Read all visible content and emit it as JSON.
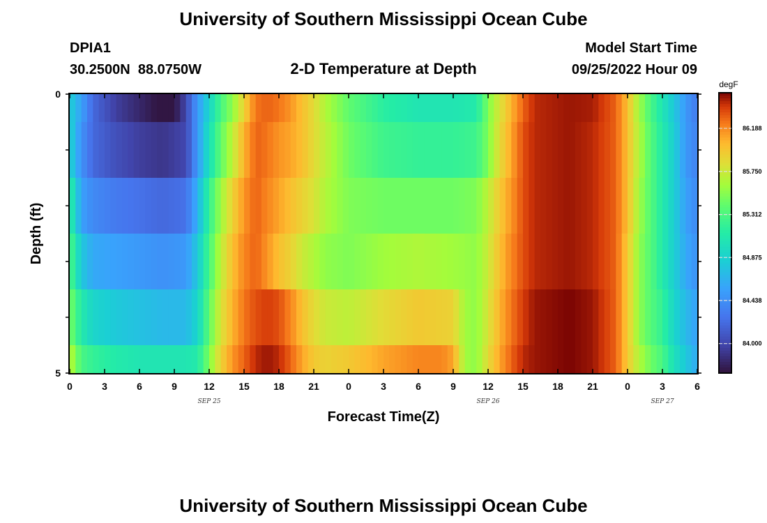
{
  "title": "University of Southern Mississippi Ocean Cube",
  "station": {
    "id": "DPIA1",
    "coords": "30.2500N  88.0750W"
  },
  "subtitle": "2-D Temperature at Depth",
  "model_start": {
    "label": "Model Start Time",
    "value": "09/25/2022 Hour 09"
  },
  "footer_title": "University of Southern Mississippi Ocean Cube",
  "chart_data": {
    "type": "heatmap",
    "xlabel": "Forecast Time(Z)",
    "ylabel": "Depth (ft)",
    "x_ticks": [
      "0",
      "3",
      "6",
      "9",
      "12",
      "15",
      "18",
      "21",
      "0",
      "3",
      "6",
      "9",
      "12",
      "15",
      "18",
      "21",
      "0",
      "3",
      "6"
    ],
    "date_labels": [
      {
        "text": "SEP 25",
        "hour": 12
      },
      {
        "text": "SEP 26",
        "hour": 36
      },
      {
        "text": "SEP 27",
        "hour": 51
      }
    ],
    "x_range_hours": [
      0,
      54
    ],
    "y_ticks": [
      "0",
      "5"
    ],
    "y_range": [
      0,
      5
    ],
    "colorbar": {
      "unit": "degF",
      "ticks": [
        "86.188",
        "85.750",
        "85.312",
        "84.875",
        "84.438",
        "84.000"
      ],
      "range": [
        83.7,
        86.55
      ]
    },
    "depth_layers": [
      {
        "depth_range": [
          0,
          0.5
        ],
        "keys": [
          [
            0,
            84.85
          ],
          [
            1,
            84.55
          ],
          [
            2,
            84.2
          ],
          [
            4,
            83.95
          ],
          [
            6,
            83.82
          ],
          [
            7.5,
            83.72
          ],
          [
            9,
            83.72
          ],
          [
            10,
            84.0
          ],
          [
            11,
            84.5
          ],
          [
            12,
            84.9
          ],
          [
            13,
            85.3
          ],
          [
            14,
            85.55
          ],
          [
            15,
            85.9
          ],
          [
            16,
            86.25
          ],
          [
            17,
            86.3
          ],
          [
            18,
            86.25
          ],
          [
            19,
            86.15
          ],
          [
            20,
            86.0
          ],
          [
            21,
            85.85
          ],
          [
            22,
            85.65
          ],
          [
            24,
            85.4
          ],
          [
            27,
            85.15
          ],
          [
            30,
            85.05
          ],
          [
            33,
            85.05
          ],
          [
            35,
            85.1
          ],
          [
            36,
            85.5
          ],
          [
            37,
            85.8
          ],
          [
            38,
            86.05
          ],
          [
            39,
            86.3
          ],
          [
            40,
            86.45
          ],
          [
            43,
            86.5
          ],
          [
            45,
            86.48
          ],
          [
            47,
            86.3
          ],
          [
            48,
            86.0
          ],
          [
            49,
            85.6
          ],
          [
            50,
            85.3
          ],
          [
            51,
            85.05
          ],
          [
            52,
            84.8
          ],
          [
            53,
            84.5
          ],
          [
            54,
            84.3
          ]
        ]
      },
      {
        "depth_range": [
          0.5,
          1.5
        ],
        "keys": [
          [
            0,
            84.9
          ],
          [
            1,
            84.45
          ],
          [
            2,
            84.2
          ],
          [
            4,
            84.05
          ],
          [
            6,
            83.95
          ],
          [
            8,
            83.9
          ],
          [
            10,
            84.0
          ],
          [
            11,
            84.5
          ],
          [
            12,
            85.0
          ],
          [
            13,
            85.4
          ],
          [
            14,
            85.7
          ],
          [
            15,
            86.05
          ],
          [
            16,
            86.3
          ],
          [
            17,
            86.25
          ],
          [
            18,
            86.15
          ],
          [
            19,
            86.1
          ],
          [
            20,
            86.0
          ],
          [
            21,
            85.85
          ],
          [
            22,
            85.7
          ],
          [
            24,
            85.45
          ],
          [
            27,
            85.25
          ],
          [
            30,
            85.2
          ],
          [
            33,
            85.2
          ],
          [
            35,
            85.25
          ],
          [
            36,
            85.5
          ],
          [
            37,
            85.85
          ],
          [
            38,
            86.1
          ],
          [
            39,
            86.35
          ],
          [
            40,
            86.45
          ],
          [
            43,
            86.5
          ],
          [
            45,
            86.45
          ],
          [
            47,
            86.3
          ],
          [
            48,
            86.0
          ],
          [
            49,
            85.65
          ],
          [
            50,
            85.35
          ],
          [
            51,
            85.1
          ],
          [
            52,
            84.85
          ],
          [
            53,
            84.5
          ],
          [
            54,
            84.35
          ]
        ]
      },
      {
        "depth_range": [
          1.5,
          2.5
        ],
        "keys": [
          [
            0,
            85.2
          ],
          [
            1,
            84.55
          ],
          [
            2,
            84.4
          ],
          [
            4,
            84.3
          ],
          [
            6,
            84.25
          ],
          [
            8,
            84.2
          ],
          [
            10,
            84.25
          ],
          [
            11,
            84.65
          ],
          [
            12,
            85.2
          ],
          [
            13,
            85.6
          ],
          [
            14,
            85.9
          ],
          [
            15,
            86.15
          ],
          [
            16,
            86.3
          ],
          [
            17,
            86.2
          ],
          [
            18,
            86.1
          ],
          [
            19,
            86.0
          ],
          [
            20,
            85.9
          ],
          [
            21,
            85.8
          ],
          [
            22,
            85.65
          ],
          [
            24,
            85.5
          ],
          [
            27,
            85.45
          ],
          [
            30,
            85.45
          ],
          [
            33,
            85.45
          ],
          [
            35,
            85.5
          ],
          [
            36,
            85.7
          ],
          [
            37,
            85.95
          ],
          [
            38,
            86.15
          ],
          [
            39,
            86.35
          ],
          [
            40,
            86.45
          ],
          [
            43,
            86.5
          ],
          [
            45,
            86.45
          ],
          [
            47,
            86.3
          ],
          [
            48,
            86.0
          ],
          [
            49,
            85.6
          ],
          [
            50,
            85.35
          ],
          [
            51,
            85.1
          ],
          [
            52,
            84.85
          ],
          [
            53,
            84.55
          ],
          [
            54,
            84.4
          ]
        ]
      },
      {
        "depth_range": [
          2.5,
          3.5
        ],
        "keys": [
          [
            0,
            85.35
          ],
          [
            1,
            84.8
          ],
          [
            2,
            84.6
          ],
          [
            4,
            84.55
          ],
          [
            6,
            84.5
          ],
          [
            8,
            84.45
          ],
          [
            10,
            84.5
          ],
          [
            11,
            84.8
          ],
          [
            12,
            85.3
          ],
          [
            13,
            85.7
          ],
          [
            14,
            86.0
          ],
          [
            15,
            86.2
          ],
          [
            16,
            86.3
          ],
          [
            17,
            86.15
          ],
          [
            18,
            86.0
          ],
          [
            19,
            85.9
          ],
          [
            20,
            85.75
          ],
          [
            21,
            85.65
          ],
          [
            22,
            85.55
          ],
          [
            24,
            85.5
          ],
          [
            27,
            85.6
          ],
          [
            30,
            85.65
          ],
          [
            33,
            85.6
          ],
          [
            35,
            85.55
          ],
          [
            36,
            85.75
          ],
          [
            37,
            86.0
          ],
          [
            38,
            86.2
          ],
          [
            39,
            86.35
          ],
          [
            40,
            86.45
          ],
          [
            43,
            86.5
          ],
          [
            45,
            86.45
          ],
          [
            47,
            86.3
          ],
          [
            48,
            85.95
          ],
          [
            49,
            85.55
          ],
          [
            50,
            85.35
          ],
          [
            51,
            85.1
          ],
          [
            52,
            84.85
          ],
          [
            53,
            84.6
          ],
          [
            54,
            84.45
          ]
        ]
      },
      {
        "depth_range": [
          3.5,
          4.5
        ],
        "keys": [
          [
            0,
            85.5
          ],
          [
            1,
            85.1
          ],
          [
            2,
            84.9
          ],
          [
            4,
            84.8
          ],
          [
            6,
            84.75
          ],
          [
            8,
            84.7
          ],
          [
            10,
            84.7
          ],
          [
            11,
            84.9
          ],
          [
            12,
            85.4
          ],
          [
            13,
            85.8
          ],
          [
            14,
            86.05
          ],
          [
            15,
            86.25
          ],
          [
            16,
            86.35
          ],
          [
            17,
            86.4
          ],
          [
            18,
            86.35
          ],
          [
            19,
            86.2
          ],
          [
            20,
            86.0
          ],
          [
            21,
            85.85
          ],
          [
            22,
            85.75
          ],
          [
            24,
            85.7
          ],
          [
            27,
            85.85
          ],
          [
            30,
            85.95
          ],
          [
            33,
            85.9
          ],
          [
            34,
            85.6
          ],
          [
            35,
            85.55
          ],
          [
            36,
            85.8
          ],
          [
            37,
            86.05
          ],
          [
            38,
            86.25
          ],
          [
            39,
            86.4
          ],
          [
            40,
            86.5
          ],
          [
            43,
            86.55
          ],
          [
            45,
            86.5
          ],
          [
            47,
            86.3
          ],
          [
            48,
            85.95
          ],
          [
            49,
            85.55
          ],
          [
            50,
            85.35
          ],
          [
            51,
            85.2
          ],
          [
            52,
            84.9
          ],
          [
            53,
            84.7
          ],
          [
            54,
            84.55
          ]
        ]
      },
      {
        "depth_range": [
          4.5,
          5
        ],
        "keys": [
          [
            0,
            85.7
          ],
          [
            1,
            85.3
          ],
          [
            2,
            85.2
          ],
          [
            4,
            85.1
          ],
          [
            6,
            85.05
          ],
          [
            8,
            85.05
          ],
          [
            10,
            85.05
          ],
          [
            11,
            85.1
          ],
          [
            12,
            85.5
          ],
          [
            13,
            85.9
          ],
          [
            14,
            86.15
          ],
          [
            15,
            86.3
          ],
          [
            16,
            86.45
          ],
          [
            17,
            86.5
          ],
          [
            18,
            86.45
          ],
          [
            19,
            86.3
          ],
          [
            20,
            86.1
          ],
          [
            21,
            85.95
          ],
          [
            22,
            85.9
          ],
          [
            24,
            85.95
          ],
          [
            27,
            86.1
          ],
          [
            30,
            86.2
          ],
          [
            32,
            86.2
          ],
          [
            33,
            86.1
          ],
          [
            34,
            85.6
          ],
          [
            35,
            85.55
          ],
          [
            36,
            85.85
          ],
          [
            37,
            86.1
          ],
          [
            38,
            86.3
          ],
          [
            39,
            86.45
          ],
          [
            40,
            86.5
          ],
          [
            43,
            86.55
          ],
          [
            45,
            86.5
          ],
          [
            47,
            86.3
          ],
          [
            48,
            85.95
          ],
          [
            49,
            85.65
          ],
          [
            50,
            85.45
          ],
          [
            51,
            85.3
          ],
          [
            52,
            85.0
          ],
          [
            53,
            84.8
          ],
          [
            54,
            84.6
          ]
        ]
      }
    ],
    "grid": false,
    "colormap": "turbo"
  }
}
